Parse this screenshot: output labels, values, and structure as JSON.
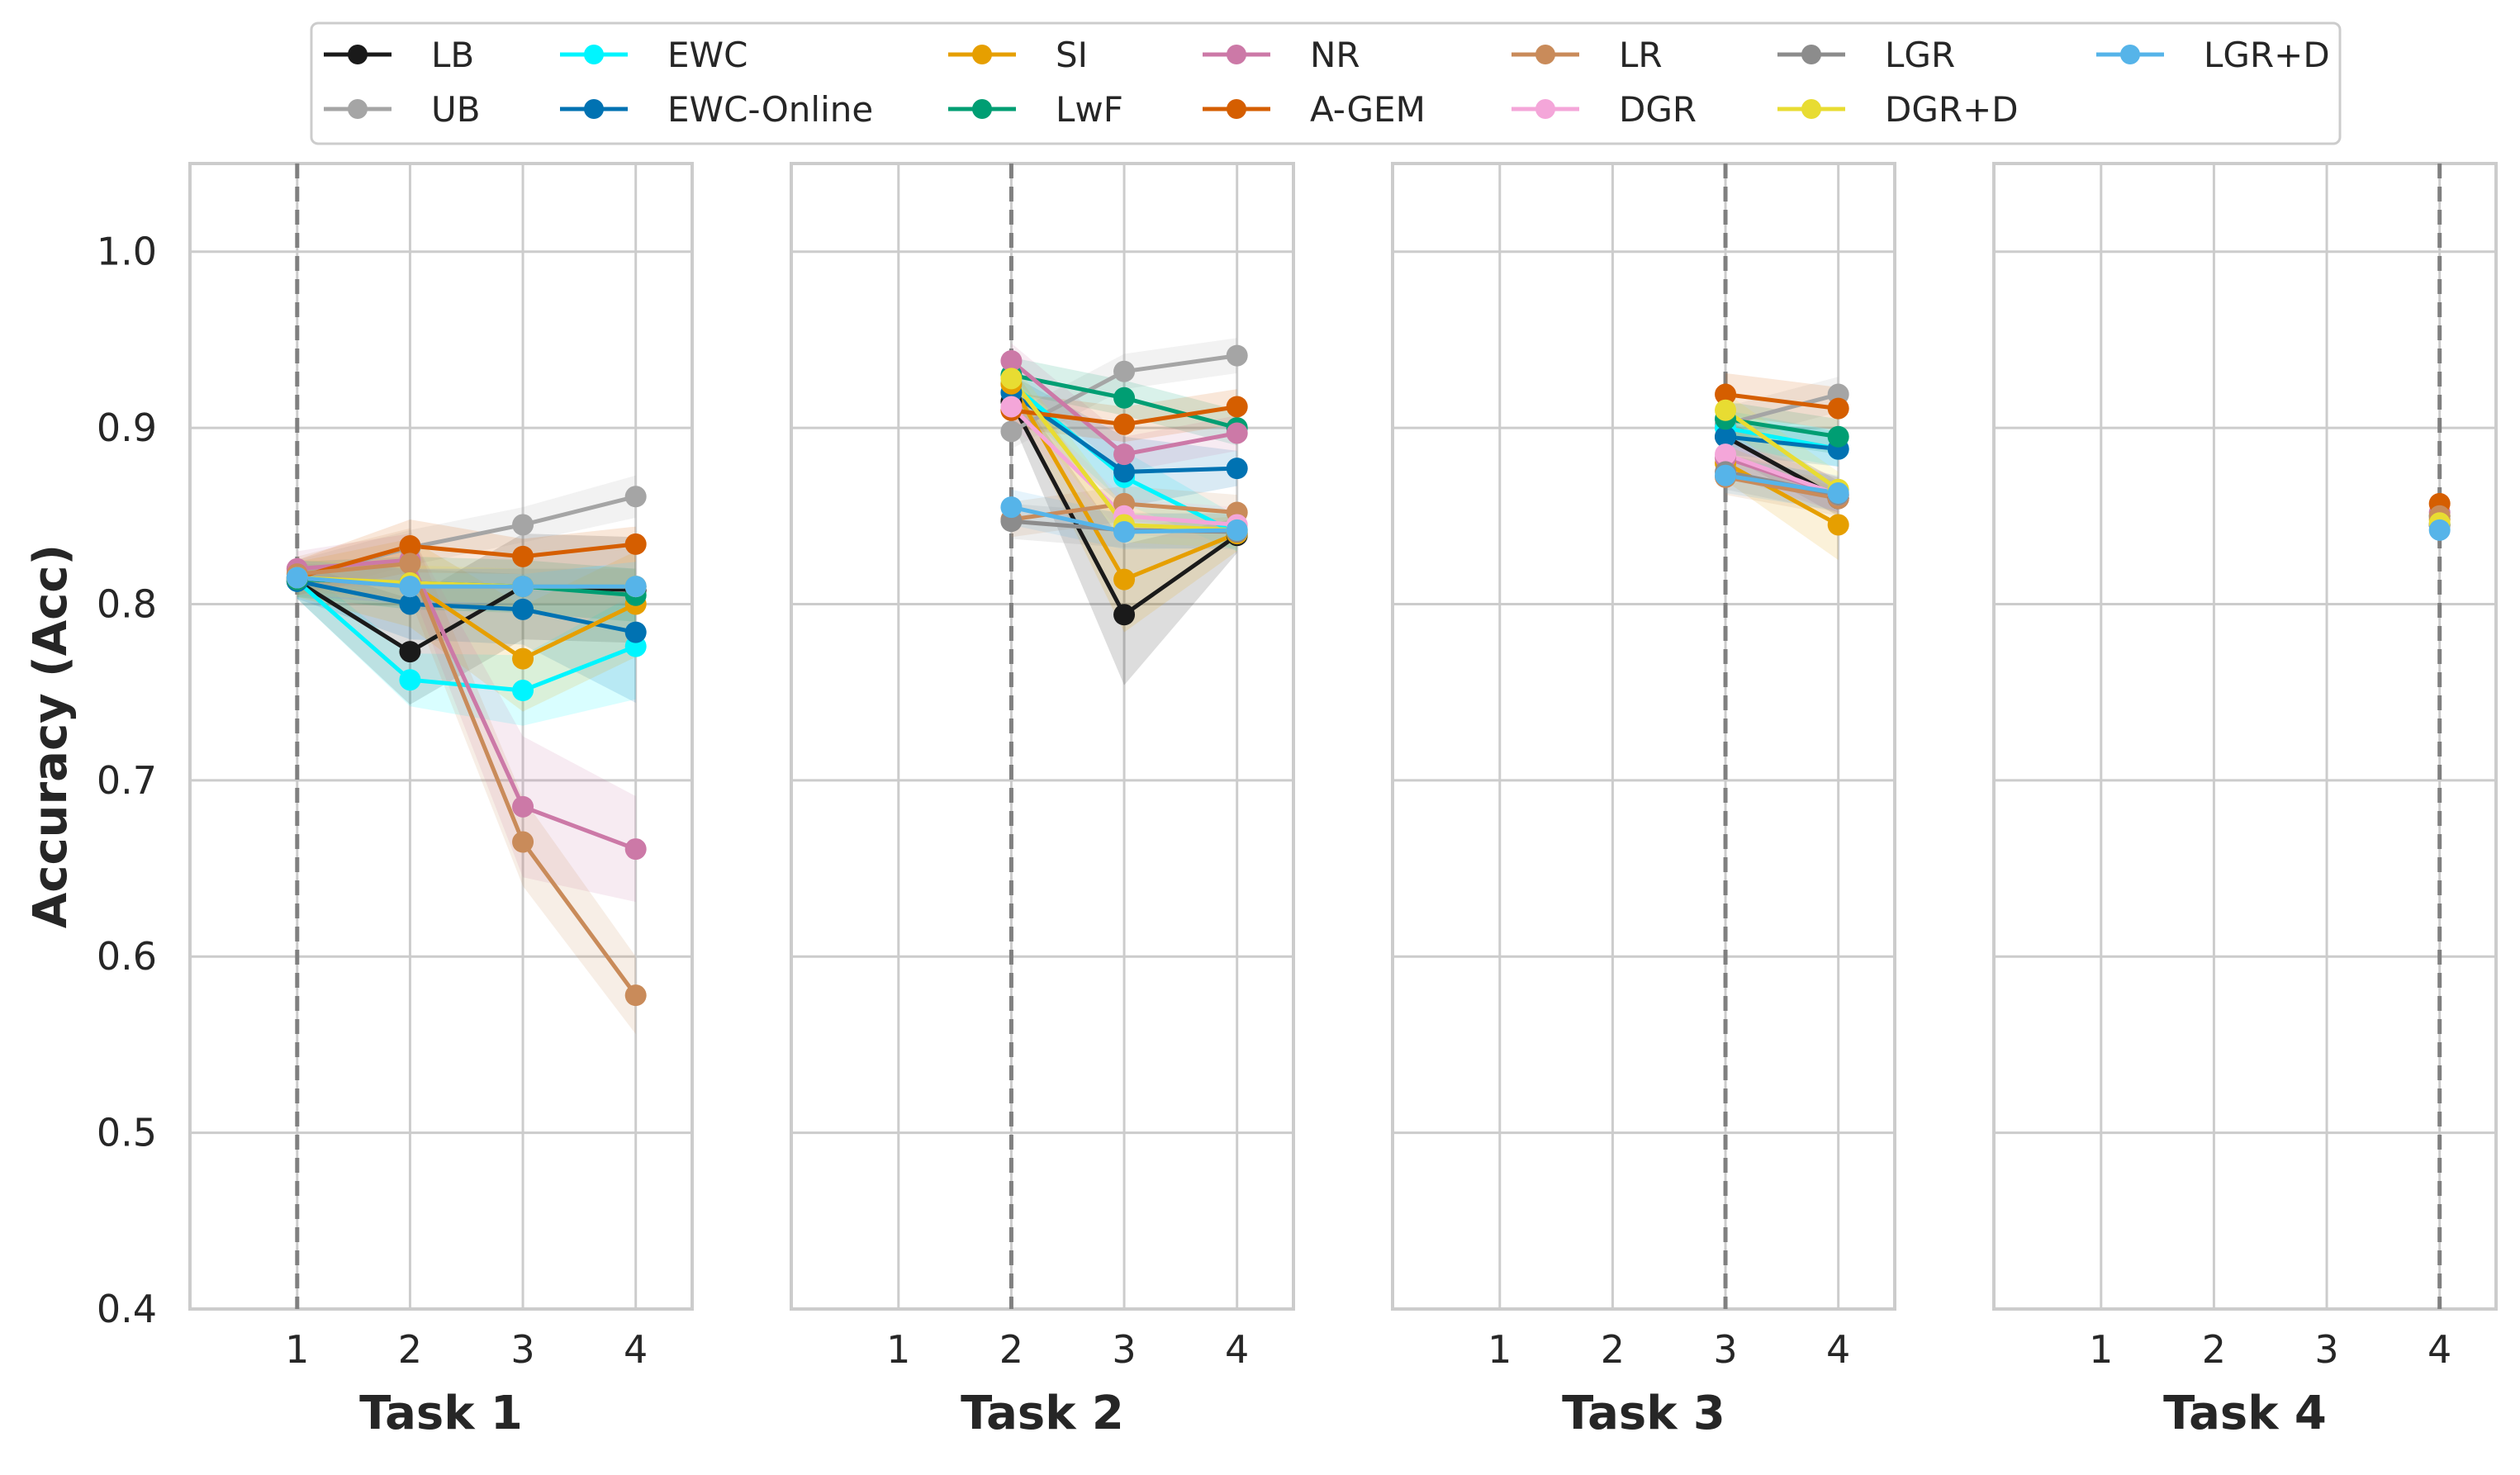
{
  "chart_data": {
    "type": "line",
    "ylabel": "Accuracy (Acc)",
    "ylim": [
      0.4,
      1.05
    ],
    "yticks": [
      0.4,
      0.5,
      0.6,
      0.7,
      0.8,
      0.9,
      1.0
    ],
    "ytick_labels": [
      "0.4",
      "0.5",
      "0.6",
      "0.7",
      "0.8",
      "0.9",
      "1.0"
    ],
    "xticks": [
      1,
      2,
      3,
      4
    ],
    "xtick_labels": [
      "1",
      "2",
      "3",
      "4"
    ],
    "xlim": [
      0.05,
      4.5
    ],
    "grid": true,
    "legend_position": "top",
    "series_styles": [
      {
        "name": "LB",
        "color": "#1a1a1a"
      },
      {
        "name": "UB",
        "color": "#a5a5a5"
      },
      {
        "name": "EWC",
        "color": "#00f5ff"
      },
      {
        "name": "EWC-Online",
        "color": "#0072b2"
      },
      {
        "name": "SI",
        "color": "#e69f00"
      },
      {
        "name": "LwF",
        "color": "#009e73"
      },
      {
        "name": "NR",
        "color": "#cc79a7"
      },
      {
        "name": "A-GEM",
        "color": "#d55e00"
      },
      {
        "name": "LR",
        "color": "#c98b5a"
      },
      {
        "name": "DGR",
        "color": "#f4a6d9"
      },
      {
        "name": "LGR",
        "color": "#8c8c8c"
      },
      {
        "name": "DGR+D",
        "color": "#e8dc32"
      },
      {
        "name": "LGR+D",
        "color": "#56b4e9"
      }
    ],
    "panels": [
      {
        "title": "Task 1",
        "start_task": 1,
        "series": [
          {
            "name": "LB",
            "x": [
              1,
              2,
              3,
              4
            ],
            "values": [
              0.813,
              0.773,
              0.81,
              0.808
            ],
            "band": [
              0.01,
              0.03,
              0.03,
              0.03
            ]
          },
          {
            "name": "UB",
            "x": [
              1,
              2,
              3,
              4
            ],
            "values": [
              0.815,
              0.832,
              0.845,
              0.861
            ],
            "band": [
              0.01,
              0.01,
              0.01,
              0.012
            ]
          },
          {
            "name": "EWC",
            "x": [
              1,
              2,
              3,
              4
            ],
            "values": [
              0.813,
              0.757,
              0.751,
              0.776
            ],
            "band": [
              0.01,
              0.015,
              0.02,
              0.03
            ]
          },
          {
            "name": "EWC-Online",
            "x": [
              1,
              2,
              3,
              4
            ],
            "values": [
              0.813,
              0.8,
              0.797,
              0.784
            ],
            "band": [
              0.01,
              0.02,
              0.02,
              0.04
            ]
          },
          {
            "name": "SI",
            "x": [
              1,
              2,
              3,
              4
            ],
            "values": [
              0.814,
              0.812,
              0.769,
              0.8
            ],
            "band": [
              0.01,
              0.025,
              0.03,
              0.03
            ]
          },
          {
            "name": "LwF",
            "x": [
              1,
              2,
              3,
              4
            ],
            "values": [
              0.814,
              0.812,
              0.81,
              0.805
            ],
            "band": [
              0.01,
              0.015,
              0.015,
              0.015
            ]
          },
          {
            "name": "NR",
            "x": [
              1,
              2,
              3,
              4
            ],
            "values": [
              0.82,
              0.825,
              0.685,
              0.661
            ],
            "band": [
              0.01,
              0.015,
              0.04,
              0.03
            ]
          },
          {
            "name": "A-GEM",
            "x": [
              1,
              2,
              3,
              4
            ],
            "values": [
              0.815,
              0.833,
              0.827,
              0.834
            ],
            "band": [
              0.01,
              0.015,
              0.01,
              0.01
            ]
          },
          {
            "name": "LR",
            "x": [
              1,
              2,
              3,
              4
            ],
            "values": [
              0.817,
              0.823,
              0.665,
              0.578
            ],
            "band": [
              0.01,
              0.02,
              0.025,
              0.022
            ]
          },
          {
            "name": "DGR",
            "x": [
              1,
              2,
              3,
              4
            ],
            "values": [
              0.815,
              0.81,
              0.81,
              0.81
            ],
            "band": [
              0.01,
              0.01,
              0.01,
              0.01
            ]
          },
          {
            "name": "LGR",
            "x": [
              1,
              2,
              3,
              4
            ],
            "values": [
              0.815,
              0.81,
              0.81,
              0.81
            ],
            "band": [
              0.01,
              0.01,
              0.01,
              0.01
            ]
          },
          {
            "name": "DGR+D",
            "x": [
              1,
              2,
              3,
              4
            ],
            "values": [
              0.815,
              0.812,
              0.81,
              0.81
            ],
            "band": [
              0.01,
              0.01,
              0.01,
              0.01
            ]
          },
          {
            "name": "LGR+D",
            "x": [
              1,
              2,
              3,
              4
            ],
            "values": [
              0.815,
              0.81,
              0.81,
              0.81
            ],
            "band": [
              0.01,
              0.01,
              0.01,
              0.01
            ]
          }
        ]
      },
      {
        "title": "Task 2",
        "start_task": 2,
        "series": [
          {
            "name": "LB",
            "x": [
              2,
              3,
              4
            ],
            "values": [
              0.915,
              0.794,
              0.839
            ],
            "band": [
              0.01,
              0.04,
              0.01
            ]
          },
          {
            "name": "UB",
            "x": [
              2,
              3,
              4
            ],
            "values": [
              0.898,
              0.932,
              0.941
            ],
            "band": [
              0.01,
              0.01,
              0.01
            ]
          },
          {
            "name": "EWC",
            "x": [
              2,
              3,
              4
            ],
            "values": [
              0.925,
              0.872,
              0.84
            ],
            "band": [
              0.01,
              0.015,
              0.01
            ]
          },
          {
            "name": "EWC-Online",
            "x": [
              2,
              3,
              4
            ],
            "values": [
              0.92,
              0.875,
              0.877
            ],
            "band": [
              0.01,
              0.02,
              0.01
            ]
          },
          {
            "name": "SI",
            "x": [
              2,
              3,
              4
            ],
            "values": [
              0.925,
              0.814,
              0.84
            ],
            "band": [
              0.01,
              0.03,
              0.01
            ]
          },
          {
            "name": "LwF",
            "x": [
              2,
              3,
              4
            ],
            "values": [
              0.93,
              0.917,
              0.9
            ],
            "band": [
              0.01,
              0.01,
              0.01
            ]
          },
          {
            "name": "NR",
            "x": [
              2,
              3,
              4
            ],
            "values": [
              0.938,
              0.885,
              0.897
            ],
            "band": [
              0.01,
              0.01,
              0.01
            ]
          },
          {
            "name": "A-GEM",
            "x": [
              2,
              3,
              4
            ],
            "values": [
              0.91,
              0.902,
              0.912
            ],
            "band": [
              0.01,
              0.01,
              0.01
            ]
          },
          {
            "name": "LR",
            "x": [
              2,
              3,
              4
            ],
            "values": [
              0.848,
              0.857,
              0.852
            ],
            "band": [
              0.01,
              0.01,
              0.01
            ]
          },
          {
            "name": "DGR",
            "x": [
              2,
              3,
              4
            ],
            "values": [
              0.912,
              0.85,
              0.845
            ],
            "band": [
              0.01,
              0.01,
              0.01
            ]
          },
          {
            "name": "LGR",
            "x": [
              2,
              3,
              4
            ],
            "values": [
              0.847,
              0.842,
              0.841
            ],
            "band": [
              0.01,
              0.01,
              0.01
            ]
          },
          {
            "name": "DGR+D",
            "x": [
              2,
              3,
              4
            ],
            "values": [
              0.928,
              0.845,
              0.842
            ],
            "band": [
              0.01,
              0.01,
              0.01
            ]
          },
          {
            "name": "LGR+D",
            "x": [
              2,
              3,
              4
            ],
            "values": [
              0.855,
              0.841,
              0.842
            ],
            "band": [
              0.01,
              0.01,
              0.01
            ]
          }
        ]
      },
      {
        "title": "Task 3",
        "start_task": 3,
        "series": [
          {
            "name": "LB",
            "x": [
              3,
              4
            ],
            "values": [
              0.895,
              0.86
            ],
            "band": [
              0.01,
              0.01
            ]
          },
          {
            "name": "UB",
            "x": [
              3,
              4
            ],
            "values": [
              0.902,
              0.919
            ],
            "band": [
              0.01,
              0.01
            ]
          },
          {
            "name": "EWC",
            "x": [
              3,
              4
            ],
            "values": [
              0.9,
              0.888
            ],
            "band": [
              0.01,
              0.01
            ]
          },
          {
            "name": "EWC-Online",
            "x": [
              3,
              4
            ],
            "values": [
              0.895,
              0.888
            ],
            "band": [
              0.01,
              0.01
            ]
          },
          {
            "name": "SI",
            "x": [
              3,
              4
            ],
            "values": [
              0.88,
              0.845
            ],
            "band": [
              0.01,
              0.02
            ]
          },
          {
            "name": "LwF",
            "x": [
              3,
              4
            ],
            "values": [
              0.905,
              0.895
            ],
            "band": [
              0.01,
              0.01
            ]
          },
          {
            "name": "NR",
            "x": [
              3,
              4
            ],
            "values": [
              0.883,
              0.862
            ],
            "band": [
              0.01,
              0.01
            ]
          },
          {
            "name": "A-GEM",
            "x": [
              3,
              4
            ],
            "values": [
              0.919,
              0.911
            ],
            "band": [
              0.012,
              0.012
            ]
          },
          {
            "name": "LR",
            "x": [
              3,
              4
            ],
            "values": [
              0.872,
              0.86
            ],
            "band": [
              0.01,
              0.01
            ]
          },
          {
            "name": "DGR",
            "x": [
              3,
              4
            ],
            "values": [
              0.885,
              0.862
            ],
            "band": [
              0.01,
              0.01
            ]
          },
          {
            "name": "LGR",
            "x": [
              3,
              4
            ],
            "values": [
              0.875,
              0.862
            ],
            "band": [
              0.01,
              0.01
            ]
          },
          {
            "name": "DGR+D",
            "x": [
              3,
              4
            ],
            "values": [
              0.91,
              0.865
            ],
            "band": [
              0.01,
              0.01
            ]
          },
          {
            "name": "LGR+D",
            "x": [
              3,
              4
            ],
            "values": [
              0.873,
              0.863
            ],
            "band": [
              0.01,
              0.01
            ]
          }
        ]
      },
      {
        "title": "Task 4",
        "start_task": 4,
        "series": [
          {
            "name": "LB",
            "x": [
              4
            ],
            "values": [
              0.845
            ],
            "band": [
              0.0
            ]
          },
          {
            "name": "UB",
            "x": [
              4
            ],
            "values": [
              0.845
            ],
            "band": [
              0.0
            ]
          },
          {
            "name": "EWC",
            "x": [
              4
            ],
            "values": [
              0.845
            ],
            "band": [
              0.0
            ]
          },
          {
            "name": "EWC-Online",
            "x": [
              4
            ],
            "values": [
              0.845
            ],
            "band": [
              0.0
            ]
          },
          {
            "name": "SI",
            "x": [
              4
            ],
            "values": [
              0.848
            ],
            "band": [
              0.0
            ]
          },
          {
            "name": "LwF",
            "x": [
              4
            ],
            "values": [
              0.85
            ],
            "band": [
              0.0
            ]
          },
          {
            "name": "NR",
            "x": [
              4
            ],
            "values": [
              0.852
            ],
            "band": [
              0.0
            ]
          },
          {
            "name": "A-GEM",
            "x": [
              4
            ],
            "values": [
              0.857
            ],
            "band": [
              0.0
            ]
          },
          {
            "name": "LR",
            "x": [
              4
            ],
            "values": [
              0.85
            ],
            "band": [
              0.0
            ]
          },
          {
            "name": "DGR",
            "x": [
              4
            ],
            "values": [
              0.845
            ],
            "band": [
              0.0
            ]
          },
          {
            "name": "LGR",
            "x": [
              4
            ],
            "values": [
              0.845
            ],
            "band": [
              0.0
            ]
          },
          {
            "name": "DGR+D",
            "x": [
              4
            ],
            "values": [
              0.846
            ],
            "band": [
              0.0
            ]
          },
          {
            "name": "LGR+D",
            "x": [
              4
            ],
            "values": [
              0.842
            ],
            "band": [
              0.0
            ]
          }
        ]
      }
    ]
  }
}
